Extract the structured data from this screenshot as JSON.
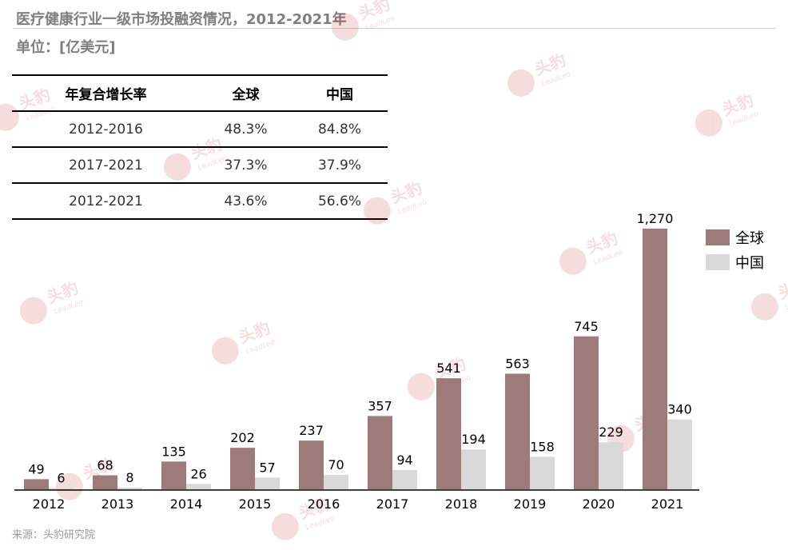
{
  "title": "医疗健康行业一级市场投融资情况，2012-2021年",
  "unit": "单位：[亿美元]",
  "source": "来源：头豹研究院",
  "watermark": {
    "brand": "头豹",
    "sub": "LeadLeo"
  },
  "table": {
    "headers": [
      "年复合增长率",
      "全球",
      "中国"
    ],
    "rows": [
      [
        "2012-2016",
        "48.3%",
        "84.8%"
      ],
      [
        "2017-2021",
        "37.3%",
        "37.9%"
      ],
      [
        "2012-2021",
        "43.6%",
        "56.6%"
      ]
    ]
  },
  "chart_data": {
    "type": "bar",
    "categories": [
      "2012",
      "2013",
      "2014",
      "2015",
      "2016",
      "2017",
      "2018",
      "2019",
      "2020",
      "2021"
    ],
    "series": [
      {
        "name": "全球",
        "color": "#9e7b7b",
        "values": [
          49,
          68,
          135,
          202,
          237,
          357,
          541,
          563,
          745,
          1270
        ],
        "labels": [
          "49",
          "68",
          "135",
          "202",
          "237",
          "357",
          "541",
          "563",
          "745",
          "1,270"
        ]
      },
      {
        "name": "中国",
        "color": "#d9d9d9",
        "values": [
          6,
          8,
          26,
          57,
          70,
          94,
          194,
          158,
          229,
          340
        ],
        "labels": [
          "6",
          "8",
          "26",
          "57",
          "70",
          "94",
          "194",
          "158",
          "229",
          "340"
        ]
      }
    ],
    "legend": "right",
    "grid": false
  }
}
